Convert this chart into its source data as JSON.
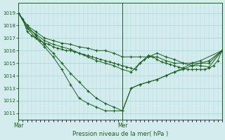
{
  "title": "Pression niveau de la mer( hPa )",
  "bg_color": "#d4ecee",
  "grid_color": "#a8d4d8",
  "line_color": "#1a5e20",
  "ylim": [
    1010.5,
    1019.8
  ],
  "yticks": [
    1011,
    1012,
    1013,
    1014,
    1015,
    1016,
    1017,
    1018,
    1019
  ],
  "xlim": [
    0,
    47
  ],
  "mar_x": 0,
  "mer_x": 24,
  "xtick_positions": [
    0,
    24
  ],
  "xtick_labels": [
    "Mar",
    "Mer"
  ],
  "series": [
    {
      "x": [
        0,
        1,
        2,
        3,
        4,
        5,
        6,
        7,
        8,
        9,
        10,
        11,
        12,
        13,
        14,
        15,
        16,
        17,
        18,
        19,
        20,
        21,
        22,
        23,
        24,
        25,
        26,
        27,
        28,
        29,
        30,
        31,
        32,
        33,
        34,
        35,
        36,
        37,
        38,
        39,
        40,
        41,
        42,
        43,
        44,
        45,
        46,
        47
      ],
      "y": [
        1019,
        1018.5,
        1017.5,
        1017.2,
        1017.0,
        1016.8,
        1016.6,
        1016.5,
        1016.3,
        1016.2,
        1016.1,
        1016.0,
        1016.0,
        1015.9,
        1015.8,
        1015.7,
        1015.6,
        1015.5,
        1015.4,
        1015.3,
        1015.2,
        1015.1,
        1015.0,
        1014.9,
        1014.8,
        1014.7,
        1014.6,
        1014.5,
        1015.0,
        1015.3,
        1015.6,
        1015.5,
        1015.3,
        1015.1,
        1015.0,
        1014.9,
        1014.8,
        1014.7,
        1014.6,
        1014.5,
        1014.5,
        1014.5,
        1014.5,
        1014.5,
        1014.6,
        1014.8,
        1015.2,
        1016.0
      ]
    },
    {
      "x": [
        0,
        2,
        4,
        6,
        8,
        10,
        12,
        14,
        16,
        18,
        20,
        22,
        24,
        26,
        28,
        30,
        32,
        34,
        36,
        38,
        40,
        42,
        44,
        47
      ],
      "y": [
        1019,
        1018.0,
        1017.2,
        1016.5,
        1015.8,
        1015.0,
        1014.2,
        1013.5,
        1012.8,
        1012.2,
        1011.8,
        1011.5,
        1011.2,
        1013.0,
        1013.3,
        1013.5,
        1013.7,
        1014.0,
        1014.3,
        1014.5,
        1014.8,
        1015.0,
        1015.2,
        1016.0
      ]
    },
    {
      "x": [
        0,
        2,
        4,
        6,
        8,
        10,
        12,
        14,
        16,
        18,
        20,
        22,
        24,
        26,
        28,
        30,
        32,
        34,
        36,
        38,
        40,
        42,
        47
      ],
      "y": [
        1019,
        1017.8,
        1017.0,
        1016.3,
        1015.5,
        1014.5,
        1013.3,
        1012.2,
        1011.8,
        1011.5,
        1011.2,
        1011.2,
        1011.2,
        1013.0,
        1013.3,
        1013.5,
        1013.7,
        1014.0,
        1014.3,
        1014.6,
        1015.0,
        1015.2,
        1016.0
      ]
    },
    {
      "x": [
        0,
        2,
        4,
        6,
        8,
        10,
        12,
        14,
        16,
        18,
        20,
        22,
        24,
        26,
        28,
        30,
        32,
        34,
        36,
        38,
        40,
        42,
        44,
        47
      ],
      "y": [
        1019,
        1017.8,
        1017.3,
        1016.8,
        1016.5,
        1016.3,
        1016.1,
        1015.8,
        1015.5,
        1015.2,
        1015.0,
        1014.8,
        1014.5,
        1014.3,
        1015.0,
        1015.5,
        1015.8,
        1015.5,
        1015.3,
        1015.0,
        1014.8,
        1014.8,
        1014.7,
        1016.0
      ]
    },
    {
      "x": [
        0,
        2,
        4,
        6,
        8,
        10,
        12,
        14,
        16,
        18,
        20,
        22,
        24,
        26,
        28,
        30,
        32,
        34,
        36,
        38,
        40,
        42,
        44,
        47
      ],
      "y": [
        1019,
        1018.0,
        1017.5,
        1017.0,
        1016.8,
        1016.6,
        1016.5,
        1016.3,
        1016.2,
        1016.0,
        1016.0,
        1015.8,
        1015.5,
        1015.5,
        1015.5,
        1015.5,
        1015.5,
        1015.2,
        1015.0,
        1015.0,
        1015.0,
        1015.0,
        1015.0,
        1016.0
      ]
    }
  ]
}
